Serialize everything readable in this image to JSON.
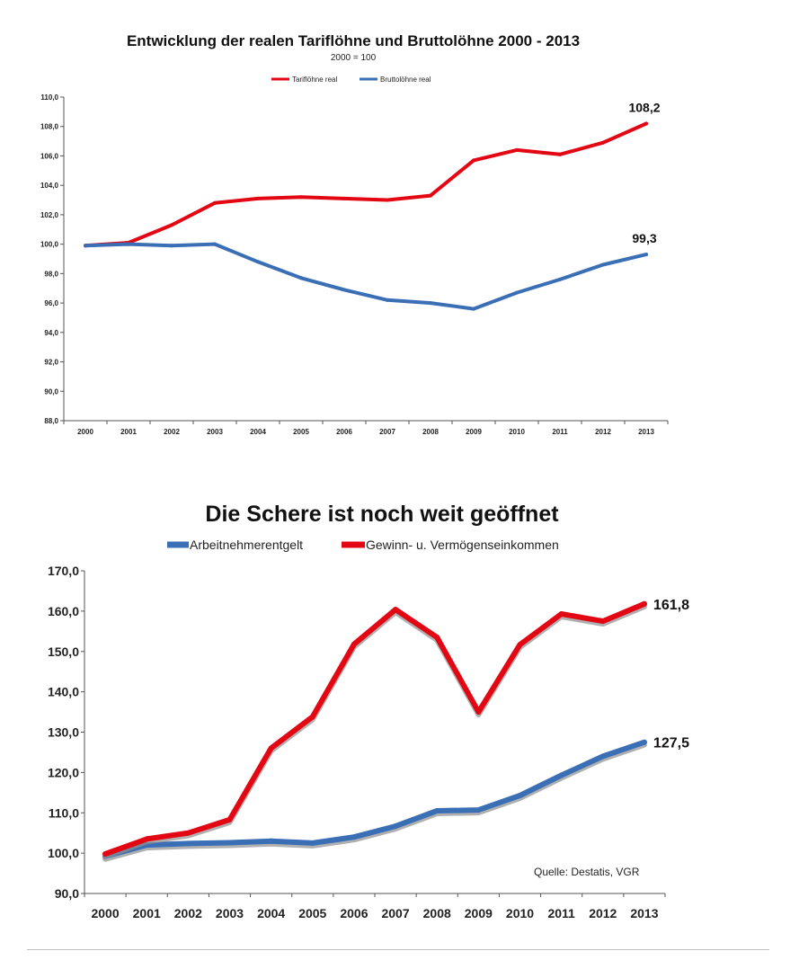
{
  "chart_data": [
    {
      "type": "line",
      "title": "Entwicklung der realen Tariflöhne und Bruttolöhne 2000 - 2013",
      "subtitle": "2000 = 100",
      "categories": [
        "2000",
        "2001",
        "2002",
        "2003",
        "2004",
        "2005",
        "2006",
        "2007",
        "2008",
        "2009",
        "2010",
        "2011",
        "2012",
        "2013"
      ],
      "y_ticks": [
        "88,0",
        "90,0",
        "92,0",
        "94,0",
        "96,0",
        "98,0",
        "100,0",
        "102,0",
        "104,0",
        "106,0",
        "108,0",
        "110,0"
      ],
      "ylim": [
        88,
        110
      ],
      "legend_position": "top",
      "grid": false,
      "series": [
        {
          "name": "Tariflöhne real",
          "color": "#e30613",
          "values": [
            99.9,
            100.1,
            101.3,
            102.8,
            103.1,
            103.2,
            103.1,
            103.0,
            103.3,
            105.7,
            106.4,
            106.1,
            106.9,
            108.2
          ]
        },
        {
          "name": "Bruttolöhne real",
          "color": "#3a6eb5",
          "values": [
            99.9,
            100.0,
            99.9,
            100.0,
            98.8,
            97.7,
            96.9,
            96.2,
            96.0,
            95.6,
            96.7,
            97.6,
            98.6,
            99.3
          ]
        }
      ],
      "end_labels": [
        "108,2",
        "99,3"
      ]
    },
    {
      "type": "line",
      "title": "Die Schere ist noch weit geöffnet",
      "categories": [
        "2000",
        "2001",
        "2002",
        "2003",
        "2004",
        "2005",
        "2006",
        "2007",
        "2008",
        "2009",
        "2010",
        "2011",
        "2012",
        "2013"
      ],
      "y_ticks": [
        "90,0",
        "100,0",
        "110,0",
        "120,0",
        "130,0",
        "140,0",
        "150,0",
        "160,0",
        "170,0"
      ],
      "ylim": [
        90,
        170
      ],
      "legend_position": "top",
      "grid": false,
      "series": [
        {
          "name": "Arbeitnehmerentgelt",
          "color": "#3a6eb5",
          "values": [
            99.2,
            102.0,
            102.4,
            102.6,
            103.0,
            102.5,
            104.0,
            106.7,
            110.5,
            110.7,
            114.3,
            119.3,
            124.0,
            127.5
          ]
        },
        {
          "name": "Gewinn- u. Vermögenseinkommen",
          "color": "#e30613",
          "values": [
            99.8,
            103.5,
            105.0,
            108.3,
            126.0,
            133.8,
            151.8,
            160.4,
            153.5,
            135.0,
            151.7,
            159.3,
            157.5,
            161.8
          ]
        }
      ],
      "end_labels": [
        "127,5",
        "161,8"
      ],
      "source": "Quelle: Destatis, VGR"
    }
  ]
}
